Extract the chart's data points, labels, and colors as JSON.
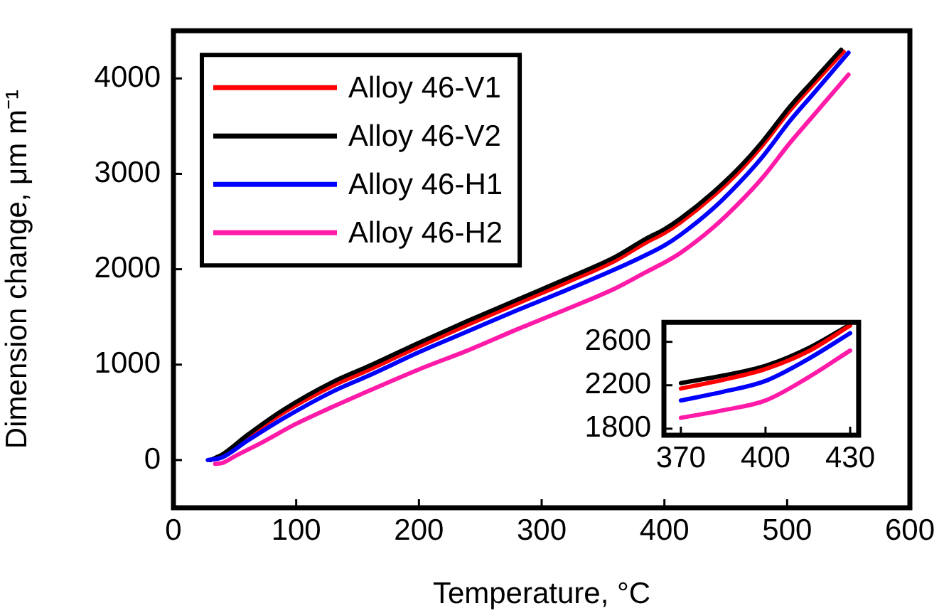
{
  "chart_data": [
    {
      "type": "line",
      "xlabel": "Temperature, °C",
      "ylabel": "Dimension change, μm m⁻¹",
      "xlim": [
        0,
        600
      ],
      "xticks": [
        0,
        100,
        200,
        300,
        400,
        500,
        600
      ],
      "ylim": [
        -500,
        4500
      ],
      "yticks": [
        0,
        1000,
        2000,
        3000,
        4000
      ],
      "grid": false,
      "legend": "top left",
      "marker": "none",
      "line_style": "solid",
      "series": [
        {
          "name": "Alloy 46-V1",
          "color": "#ff0000",
          "x": [
            30,
            40,
            60,
            90,
            130,
            160,
            200,
            240,
            280,
            320,
            360,
            385,
            400,
            413,
            440,
            462,
            480,
            502,
            520,
            546
          ],
          "values": [
            0,
            50,
            240,
            500,
            780,
            950,
            1190,
            1420,
            1640,
            1860,
            2090,
            2280,
            2380,
            2490,
            2770,
            3040,
            3300,
            3660,
            3920,
            4280
          ]
        },
        {
          "name": "Alloy 46-V2",
          "color": "#000000",
          "x": [
            30,
            40,
            60,
            90,
            130,
            160,
            200,
            240,
            280,
            320,
            360,
            385,
            400,
            413,
            440,
            462,
            480,
            502,
            520,
            544
          ],
          "values": [
            0,
            60,
            260,
            530,
            820,
            990,
            1230,
            1460,
            1680,
            1900,
            2130,
            2320,
            2420,
            2530,
            2810,
            3080,
            3340,
            3700,
            3960,
            4300
          ]
        },
        {
          "name": "Alloy 46-H1",
          "color": "#0000ff",
          "x": [
            28,
            40,
            60,
            90,
            130,
            160,
            200,
            240,
            280,
            320,
            360,
            385,
            400,
            413,
            440,
            462,
            480,
            502,
            520,
            550
          ],
          "values": [
            0,
            30,
            200,
            440,
            720,
            890,
            1130,
            1350,
            1570,
            1780,
            2000,
            2150,
            2250,
            2360,
            2640,
            2920,
            3180,
            3550,
            3820,
            4270
          ]
        },
        {
          "name": "Alloy 46-H2",
          "color": "#ff1aa8",
          "x": [
            34,
            40,
            50,
            70,
            100,
            130,
            160,
            200,
            240,
            280,
            320,
            360,
            385,
            400,
            413,
            440,
            462,
            480,
            502,
            520,
            550
          ],
          "values": [
            -40,
            -30,
            40,
            170,
            380,
            560,
            730,
            950,
            1150,
            1370,
            1580,
            1800,
            1970,
            2070,
            2170,
            2440,
            2710,
            2960,
            3320,
            3590,
            4040
          ]
        }
      ]
    },
    {
      "type": "line",
      "xlim": [
        364,
        433
      ],
      "xticks": [
        370,
        400,
        430
      ],
      "ylim": [
        1740,
        2780
      ],
      "yticks": [
        1800,
        2200,
        2600
      ],
      "grid": false,
      "legend": false,
      "marker": "none",
      "line_style": "solid",
      "series": [
        {
          "color": "#000000",
          "x": [
            370,
            385,
            400,
            415,
            430
          ],
          "values": [
            2220,
            2290,
            2380,
            2540,
            2760
          ]
        },
        {
          "color": "#ff0000",
          "x": [
            370,
            385,
            400,
            415,
            430
          ],
          "values": [
            2170,
            2250,
            2350,
            2510,
            2750
          ]
        },
        {
          "color": "#0000ff",
          "x": [
            370,
            385,
            400,
            415,
            430
          ],
          "values": [
            2060,
            2140,
            2240,
            2440,
            2680
          ]
        },
        {
          "color": "#ff1aa8",
          "x": [
            370,
            385,
            400,
            415,
            430
          ],
          "values": [
            1900,
            1970,
            2060,
            2270,
            2520
          ]
        }
      ]
    }
  ]
}
